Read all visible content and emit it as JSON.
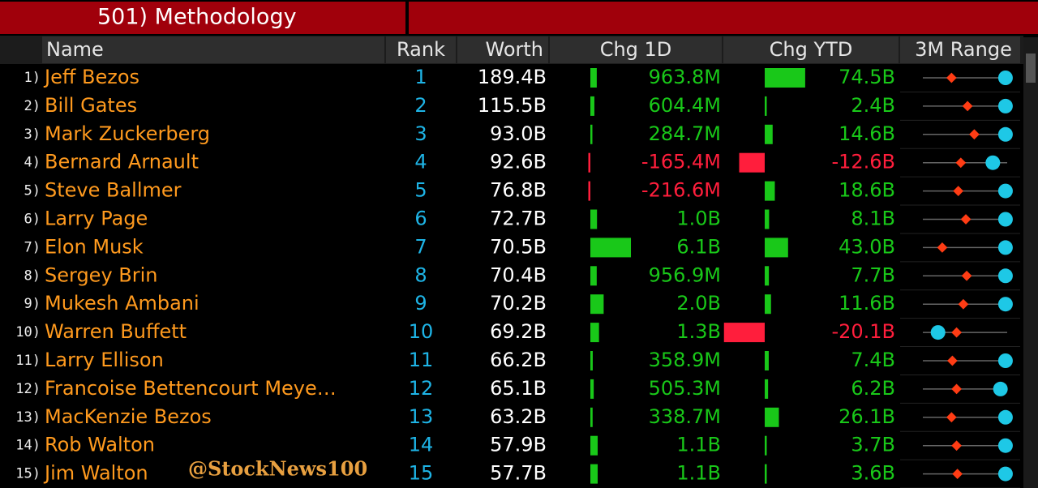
{
  "header": {
    "title": "501) Methodology"
  },
  "columns": [
    "Name",
    "Rank",
    "Worth",
    "Chg 1D",
    "Chg YTD",
    "3M Range"
  ],
  "rows": [
    {
      "index": "1)",
      "name": "Jeff Bezos",
      "rank": 1,
      "worth": "189.4B",
      "chg_1d": {
        "value": 963800000,
        "label": "963.8M"
      },
      "chg_ytd": {
        "value": 74500000000,
        "label": "74.5B"
      },
      "range": [
        34,
        98
      ]
    },
    {
      "index": "2)",
      "name": "Bill Gates",
      "rank": 2,
      "worth": "115.5B",
      "chg_1d": {
        "value": 604400000,
        "label": "604.4M"
      },
      "chg_ytd": {
        "value": 2400000000,
        "label": "2.4B"
      },
      "range": [
        53,
        98
      ]
    },
    {
      "index": "3)",
      "name": "Mark Zuckerberg",
      "rank": 3,
      "worth": "93.0B",
      "chg_1d": {
        "value": 284700000,
        "label": "284.7M"
      },
      "chg_ytd": {
        "value": 14600000000,
        "label": "14.6B"
      },
      "range": [
        61,
        98
      ]
    },
    {
      "index": "4)",
      "name": "Bernard Arnault",
      "rank": 4,
      "worth": "92.6B",
      "chg_1d": {
        "value": -165400000,
        "label": "-165.4M"
      },
      "chg_ytd": {
        "value": -12600000000,
        "label": "-12.6B"
      },
      "range": [
        45,
        83
      ]
    },
    {
      "index": "5)",
      "name": "Steve Ballmer",
      "rank": 5,
      "worth": "76.8B",
      "chg_1d": {
        "value": -216600000,
        "label": "-216.6M"
      },
      "chg_ytd": {
        "value": 18600000000,
        "label": "18.6B"
      },
      "range": [
        42,
        98
      ]
    },
    {
      "index": "6)",
      "name": "Larry Page",
      "rank": 6,
      "worth": "72.7B",
      "chg_1d": {
        "value": 1000000000,
        "label": "1.0B"
      },
      "chg_ytd": {
        "value": 8100000000,
        "label": "8.1B"
      },
      "range": [
        51,
        98
      ]
    },
    {
      "index": "7)",
      "name": "Elon Musk",
      "rank": 7,
      "worth": "70.5B",
      "chg_1d": {
        "value": 6100000000,
        "label": "6.1B"
      },
      "chg_ytd": {
        "value": 43000000000,
        "label": "43.0B"
      },
      "range": [
        23,
        98
      ]
    },
    {
      "index": "8)",
      "name": "Sergey Brin",
      "rank": 8,
      "worth": "70.4B",
      "chg_1d": {
        "value": 956900000,
        "label": "956.9M"
      },
      "chg_ytd": {
        "value": 7700000000,
        "label": "7.7B"
      },
      "range": [
        52,
        98
      ]
    },
    {
      "index": "9)",
      "name": "Mukesh Ambani",
      "rank": 9,
      "worth": "70.2B",
      "chg_1d": {
        "value": 2000000000,
        "label": "2.0B"
      },
      "chg_ytd": {
        "value": 11600000000,
        "label": "11.6B"
      },
      "range": [
        48,
        98
      ]
    },
    {
      "index": "10)",
      "name": "Warren Buffett",
      "rank": 10,
      "worth": "69.2B",
      "chg_1d": {
        "value": 1300000000,
        "label": "1.3B"
      },
      "chg_ytd": {
        "value": -20100000000,
        "label": "-20.1B"
      },
      "range": [
        40,
        18
      ]
    },
    {
      "index": "11)",
      "name": "Larry Ellison",
      "rank": 11,
      "worth": "66.2B",
      "chg_1d": {
        "value": 358900000,
        "label": "358.9M"
      },
      "chg_ytd": {
        "value": 7400000000,
        "label": "7.4B"
      },
      "range": [
        35,
        98
      ]
    },
    {
      "index": "12)",
      "name": "Francoise Bettencourt Meye…",
      "rank": 12,
      "worth": "65.1B",
      "chg_1d": {
        "value": 505300000,
        "label": "505.3M"
      },
      "chg_ytd": {
        "value": 6200000000,
        "label": "6.2B"
      },
      "range": [
        40,
        92
      ]
    },
    {
      "index": "13)",
      "name": "MacKenzie Bezos",
      "rank": 13,
      "worth": "63.2B",
      "chg_1d": {
        "value": 338700000,
        "label": "338.7M"
      },
      "chg_ytd": {
        "value": 26100000000,
        "label": "26.1B"
      },
      "range": [
        34,
        98
      ]
    },
    {
      "index": "14)",
      "name": "Rob Walton",
      "rank": 14,
      "worth": "57.9B",
      "chg_1d": {
        "value": 1100000000,
        "label": "1.1B"
      },
      "chg_ytd": {
        "value": 3700000000,
        "label": "3.7B"
      },
      "range": [
        40,
        98
      ]
    },
    {
      "index": "15)",
      "name": "Jim Walton",
      "rank": 15,
      "worth": "57.7B",
      "chg_1d": {
        "value": 1100000000,
        "label": "1.1B"
      },
      "chg_ytd": {
        "value": 3600000000,
        "label": "3.6B"
      },
      "range": [
        41,
        98
      ]
    }
  ],
  "watermark": "@StockNews100"
}
